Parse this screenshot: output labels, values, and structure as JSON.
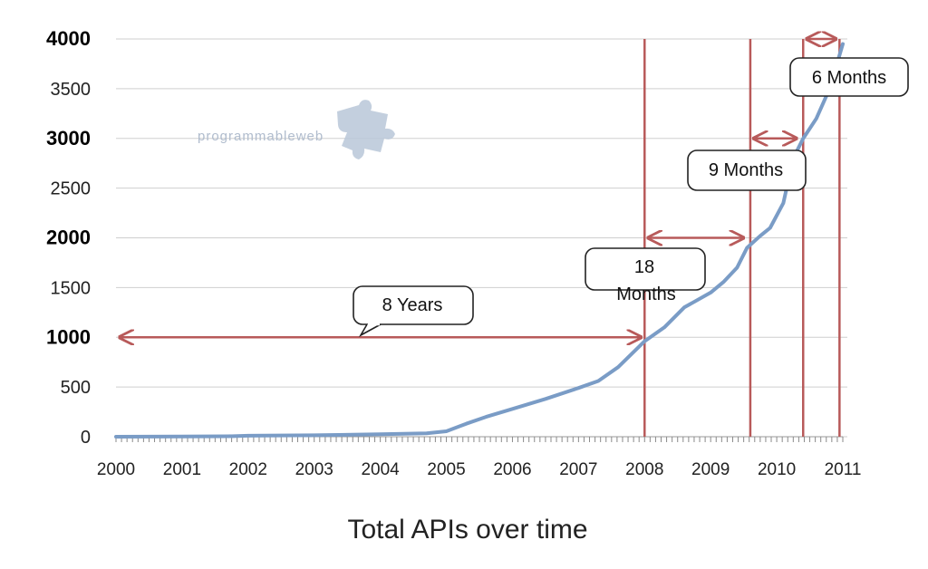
{
  "chart_data": {
    "type": "line",
    "title": "Total APIs over time",
    "xlabel": "",
    "ylabel": "",
    "xlim": [
      2000,
      2011
    ],
    "ylim": [
      0,
      4000
    ],
    "grid": true,
    "x_ticks": [
      "2000",
      "2001",
      "2002",
      "2003",
      "2004",
      "2005",
      "2006",
      "2007",
      "2008",
      "2009",
      "2010",
      "2011"
    ],
    "y_ticks": [
      {
        "value": 0,
        "label": "0",
        "bold": false
      },
      {
        "value": 500,
        "label": "500",
        "bold": false
      },
      {
        "value": 1000,
        "label": "1000",
        "bold": true
      },
      {
        "value": 1500,
        "label": "1500",
        "bold": false
      },
      {
        "value": 2000,
        "label": "2000",
        "bold": true
      },
      {
        "value": 2500,
        "label": "2500",
        "bold": false
      },
      {
        "value": 3000,
        "label": "3000",
        "bold": true
      },
      {
        "value": 3500,
        "label": "3500",
        "bold": false
      },
      {
        "value": 4000,
        "label": "4000",
        "bold": true
      }
    ],
    "series": [
      {
        "color": "#7a9cc6",
        "x": [
          2000.0,
          2001.0,
          2001.7,
          2002.0,
          2003.0,
          2004.0,
          2004.7,
          2005.0,
          2005.3,
          2005.6,
          2006.0,
          2006.5,
          2007.0,
          2007.3,
          2007.6,
          2008.0,
          2008.3,
          2008.6,
          2009.0,
          2009.2,
          2009.4,
          2009.55,
          2009.75,
          2009.9,
          2010.1,
          2010.25,
          2010.4,
          2010.6,
          2010.8,
          2011.0
        ],
        "y": [
          0,
          2,
          5,
          10,
          15,
          25,
          35,
          55,
          130,
          200,
          280,
          380,
          490,
          560,
          700,
          960,
          1100,
          1300,
          1450,
          1560,
          1700,
          1900,
          2020,
          2100,
          2350,
          2800,
          3000,
          3200,
          3500,
          3950
        ]
      }
    ],
    "markers": [
      {
        "x": 2008.0
      },
      {
        "x": 2009.6
      },
      {
        "x": 2010.4
      },
      {
        "x": 2010.95
      }
    ],
    "intervals": [
      {
        "from": 2000.0,
        "to": 2008.0,
        "y": 1000,
        "label": "8 Years"
      },
      {
        "from": 2008.0,
        "to": 2009.55,
        "y": 2000,
        "label": "18 Months"
      },
      {
        "from": 2009.6,
        "to": 2010.35,
        "y": 3000,
        "label": "9 Months"
      },
      {
        "from": 2010.4,
        "to": 2010.95,
        "y": 4000,
        "label": "6 Months"
      }
    ],
    "marker_color": "#b85a5a",
    "line_color": "#7a9cc6",
    "watermark": "programmableweb"
  }
}
